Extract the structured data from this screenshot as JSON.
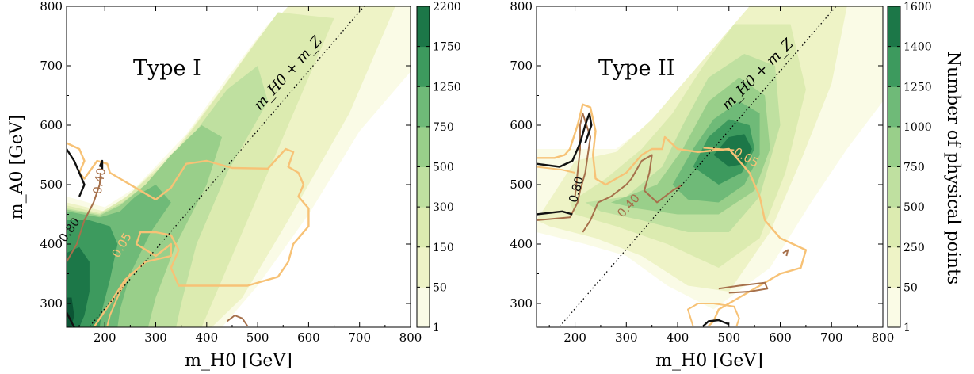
{
  "chart_data": [
    {
      "type": "heatmap",
      "panel_label": "Type I",
      "xlabel": "m_H0 [GeV]",
      "ylabel": "m_A0 [GeV]",
      "xlim": [
        125,
        800
      ],
      "ylim": [
        260,
        800
      ],
      "xticks": [
        "200",
        "300",
        "400",
        "500",
        "600",
        "700",
        "800"
      ],
      "yticks": [
        "300",
        "400",
        "500",
        "600",
        "700",
        "800"
      ],
      "diagonal_label": "m_H0 + m_Z",
      "colorbar": {
        "title": "",
        "levels": [
          1,
          50,
          150,
          300,
          500,
          750,
          1250,
          1750,
          2200
        ],
        "labels": [
          "1",
          "50",
          "150",
          "300",
          "500",
          "750",
          "1250",
          "1750",
          "2200"
        ]
      },
      "density_peak": {
        "x": 140,
        "y": 290
      },
      "contour_labels": [
        "0.80",
        "0.40",
        "0.05"
      ]
    },
    {
      "type": "heatmap",
      "panel_label": "Type II",
      "xlabel": "m_H0 [GeV]",
      "ylabel": "",
      "xlim": [
        125,
        800
      ],
      "ylim": [
        260,
        800
      ],
      "xticks": [
        "200",
        "300",
        "400",
        "500",
        "600",
        "700",
        "800"
      ],
      "yticks": [
        "300",
        "400",
        "500",
        "600",
        "700",
        "800"
      ],
      "diagonal_label": "m_H0 + m_Z",
      "colorbar": {
        "title": "Number of physical points",
        "levels": [
          1,
          50,
          250,
          500,
          750,
          1000,
          1250,
          1400,
          1600
        ],
        "labels": [
          "1",
          "50",
          "250",
          "500",
          "750",
          "1000",
          "1250",
          "1400",
          "1600"
        ]
      },
      "density_peak": {
        "x": 530,
        "y": 570
      },
      "contour_labels": [
        "0.80",
        "0.40",
        "0.05"
      ]
    }
  ],
  "colors": {
    "fill_levels": [
      "#fafbe6",
      "#eef3c6",
      "#dcebb0",
      "#bfe0a0",
      "#99cf8a",
      "#6fba78",
      "#3d9a5e",
      "#1c7748",
      "#0b5434"
    ],
    "contour_005": "#f7c276",
    "contour_040": "#a6704b",
    "contour_080": "#111111"
  }
}
